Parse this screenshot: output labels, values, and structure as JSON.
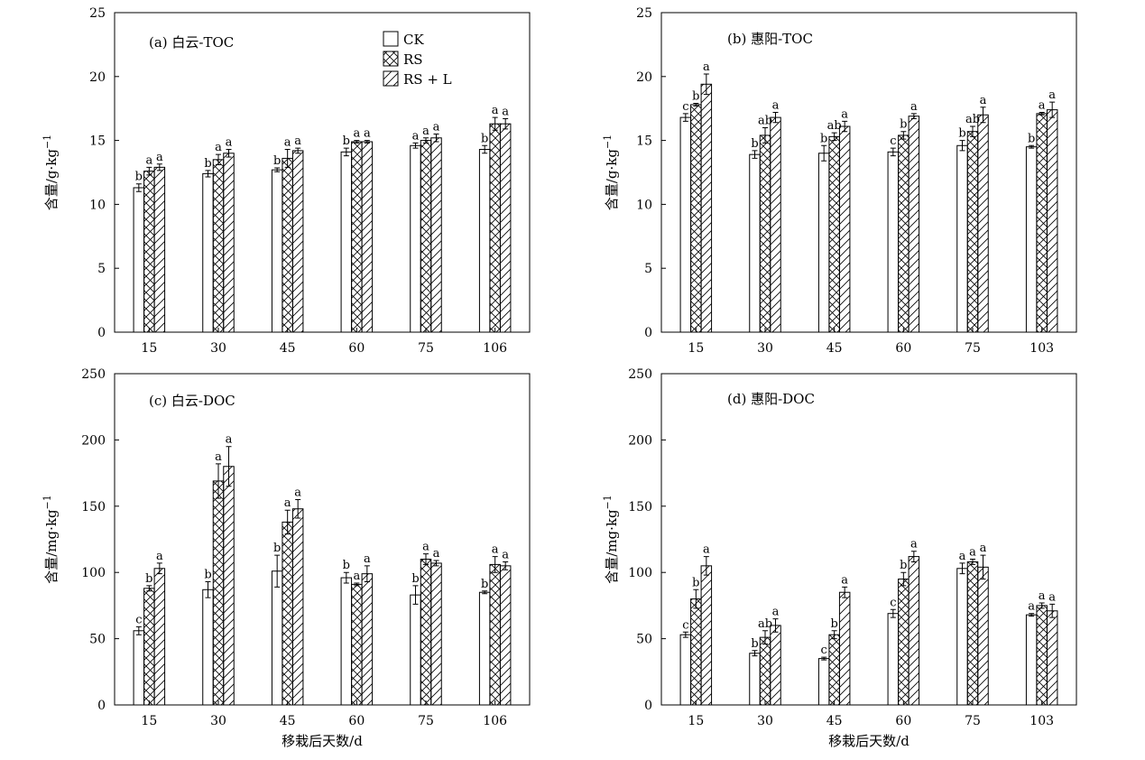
{
  "chart_data": [
    {
      "type": "bar",
      "title": "(a) 白云-TOC",
      "xlabel": "",
      "ylabel": "含量/g·kg",
      "ylabel_sup": "−1",
      "ylim": [
        0,
        25
      ],
      "yticks": [
        0,
        5,
        10,
        15,
        20,
        25
      ],
      "categories": [
        "15",
        "30",
        "45",
        "60",
        "75",
        "106"
      ],
      "series": [
        {
          "name": "CK",
          "values": [
            11.3,
            12.4,
            12.7,
            14.1,
            14.6,
            14.3
          ],
          "errors": [
            0.3,
            0.25,
            0.15,
            0.3,
            0.2,
            0.3
          ],
          "letters": [
            "b",
            "b",
            "b",
            "b",
            "a",
            "b"
          ]
        },
        {
          "name": "RS",
          "values": [
            12.6,
            13.5,
            13.6,
            14.9,
            15.0,
            16.3
          ],
          "errors": [
            0.3,
            0.4,
            0.7,
            0.1,
            0.2,
            0.5
          ],
          "letters": [
            "a",
            "a",
            "a",
            "a",
            "a",
            "a"
          ]
        },
        {
          "name": "RS + L",
          "values": [
            12.9,
            14.0,
            14.2,
            14.9,
            15.2,
            16.3
          ],
          "errors": [
            0.25,
            0.3,
            0.2,
            0.1,
            0.3,
            0.4
          ],
          "letters": [
            "a",
            "a",
            "a",
            "a",
            "a",
            "a"
          ]
        }
      ],
      "legend": "top-center"
    },
    {
      "type": "bar",
      "title": "(b) 惠阳-TOC",
      "xlabel": "",
      "ylabel": "含量/g·kg",
      "ylabel_sup": "−1",
      "ylim": [
        0,
        25
      ],
      "yticks": [
        0,
        5,
        10,
        15,
        20,
        25
      ],
      "categories": [
        "15",
        "30",
        "45",
        "60",
        "75",
        "103"
      ],
      "series": [
        {
          "name": "CK",
          "values": [
            16.8,
            13.9,
            14.0,
            14.1,
            14.6,
            14.5
          ],
          "errors": [
            0.3,
            0.3,
            0.6,
            0.3,
            0.4,
            0.1
          ],
          "letters": [
            "c",
            "b",
            "b",
            "c",
            "b",
            "b"
          ]
        },
        {
          "name": "RS",
          "values": [
            17.8,
            15.4,
            15.3,
            15.4,
            15.7,
            17.1
          ],
          "errors": [
            0.1,
            0.6,
            0.3,
            0.3,
            0.4,
            0.1
          ],
          "letters": [
            "b",
            "ab",
            "ab",
            "b",
            "ab",
            "a"
          ]
        },
        {
          "name": "RS + L",
          "values": [
            19.4,
            16.8,
            16.1,
            16.9,
            17.0,
            17.4
          ],
          "errors": [
            0.8,
            0.4,
            0.4,
            0.2,
            0.6,
            0.6
          ],
          "letters": [
            "a",
            "a",
            "a",
            "a",
            "a",
            "a"
          ]
        }
      ]
    },
    {
      "type": "bar",
      "title": "(c) 白云-DOC",
      "xlabel": "移栽后天数/d",
      "ylabel": "含量/mg·kg",
      "ylabel_sup": "−1",
      "ylim": [
        0,
        250
      ],
      "yticks": [
        0,
        50,
        100,
        150,
        200,
        250
      ],
      "categories": [
        "15",
        "30",
        "45",
        "60",
        "75",
        "106"
      ],
      "series": [
        {
          "name": "CK",
          "values": [
            56,
            87,
            101,
            96,
            83,
            85
          ],
          "errors": [
            3,
            6,
            12,
            4,
            7,
            1
          ],
          "letters": [
            "c",
            "b",
            "b",
            "b",
            "b",
            "b"
          ]
        },
        {
          "name": "RS",
          "values": [
            88,
            169,
            138,
            91,
            110,
            106
          ],
          "errors": [
            2,
            13,
            9,
            1,
            4,
            6
          ],
          "letters": [
            "b",
            "a",
            "a",
            "a",
            "a",
            "a"
          ]
        },
        {
          "name": "RS + L",
          "values": [
            103,
            180,
            148,
            99,
            107,
            105
          ],
          "errors": [
            4,
            15,
            7,
            6,
            2,
            3
          ],
          "letters": [
            "a",
            "a",
            "a",
            "a",
            "a",
            "a"
          ]
        }
      ]
    },
    {
      "type": "bar",
      "title": "(d) 惠阳-DOC",
      "xlabel": "移栽后天数/d",
      "ylabel": "含量/mg·kg",
      "ylabel_sup": "−1",
      "ylim": [
        0,
        250
      ],
      "yticks": [
        0,
        50,
        100,
        150,
        200,
        250
      ],
      "categories": [
        "15",
        "30",
        "45",
        "60",
        "75",
        "103"
      ],
      "series": [
        {
          "name": "CK",
          "values": [
            53,
            39,
            35,
            69,
            103,
            68
          ],
          "errors": [
            2,
            2,
            1,
            3,
            4,
            1
          ],
          "letters": [
            "c",
            "b",
            "c",
            "c",
            "a",
            "a"
          ]
        },
        {
          "name": "RS",
          "values": [
            80,
            51,
            53,
            95,
            108,
            75
          ],
          "errors": [
            7,
            5,
            3,
            5,
            2,
            2
          ],
          "letters": [
            "b",
            "ab",
            "b",
            "b",
            "a",
            "a"
          ]
        },
        {
          "name": "RS + L",
          "values": [
            105,
            60,
            85,
            112,
            104,
            71
          ],
          "errors": [
            7,
            5,
            4,
            4,
            9,
            5
          ],
          "letters": [
            "a",
            "a",
            "a",
            "a",
            "a",
            "a"
          ]
        }
      ]
    }
  ]
}
